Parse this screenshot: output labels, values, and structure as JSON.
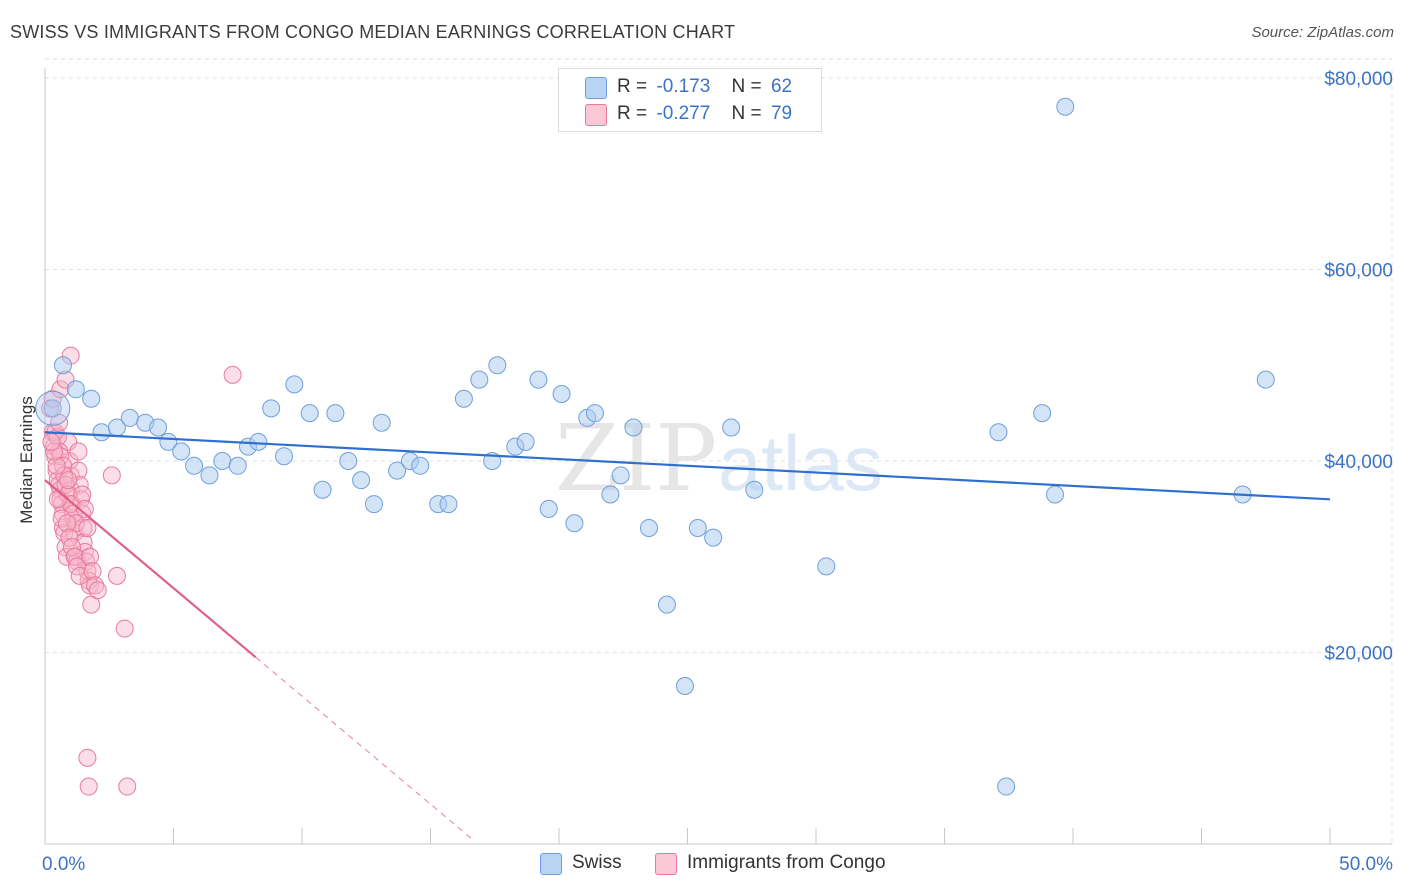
{
  "header": {
    "title": "SWISS VS IMMIGRANTS FROM CONGO MEDIAN EARNINGS CORRELATION CHART",
    "source": "Source: ZipAtlas.com"
  },
  "watermark": {
    "zip": "ZIP",
    "atlas": "atlas"
  },
  "legend": {
    "rows": [
      {
        "r_label": "R =",
        "r_value": "-0.173",
        "n_label": "N =",
        "n_value": "62"
      },
      {
        "r_label": "R =",
        "r_value": "-0.277",
        "n_label": "N =",
        "n_value": "79"
      }
    ]
  },
  "bottom_legend": {
    "swiss": "Swiss",
    "congo": "Immigrants from Congo"
  },
  "colors": {
    "swiss_fill": "#a9c9f0",
    "swiss_stroke": "#6f9fdc",
    "swiss_line": "#2f6fcf",
    "congo_fill": "#f6b6c9",
    "congo_stroke": "#e97a9e",
    "congo_line": "#e0608a",
    "axis_text": "#3b73c4",
    "grid": "#dde3ea"
  },
  "chart_data": {
    "type": "scatter",
    "title": "SWISS VS IMMIGRANTS FROM CONGO MEDIAN EARNINGS CORRELATION CHART",
    "ylabel": "Median Earnings",
    "xlabel": "",
    "xlim": [
      0,
      50
    ],
    "ylim": [
      0,
      82000
    ],
    "x_tick_labels": [
      "0.0%",
      "50.0%"
    ],
    "y_ticks": [
      20000,
      40000,
      60000,
      80000
    ],
    "y_tick_labels": [
      "$20,000",
      "$40,000",
      "$60,000",
      "$80,000"
    ],
    "grid": true,
    "legend_position": "top-center",
    "series": [
      {
        "name": "Swiss",
        "R": -0.173,
        "N": 62,
        "trend": {
          "x": [
            0,
            50
          ],
          "y": [
            43000,
            36000
          ]
        },
        "points": [
          [
            0.3,
            45500
          ],
          [
            0.7,
            50000
          ],
          [
            1.2,
            47500
          ],
          [
            1.8,
            46500
          ],
          [
            2.2,
            43000
          ],
          [
            2.8,
            43500
          ],
          [
            3.3,
            44500
          ],
          [
            3.9,
            44000
          ],
          [
            4.4,
            43500
          ],
          [
            4.8,
            42000
          ],
          [
            5.3,
            41000
          ],
          [
            5.8,
            39500
          ],
          [
            6.4,
            38500
          ],
          [
            6.9,
            40000
          ],
          [
            7.5,
            39500
          ],
          [
            7.9,
            41500
          ],
          [
            8.3,
            42000
          ],
          [
            8.8,
            45500
          ],
          [
            9.3,
            40500
          ],
          [
            9.7,
            48000
          ],
          [
            10.3,
            45000
          ],
          [
            10.8,
            37000
          ],
          [
            11.3,
            45000
          ],
          [
            11.8,
            40000
          ],
          [
            12.3,
            38000
          ],
          [
            12.8,
            35500
          ],
          [
            13.1,
            44000
          ],
          [
            13.7,
            39000
          ],
          [
            14.2,
            40000
          ],
          [
            14.6,
            39500
          ],
          [
            15.3,
            35500
          ],
          [
            15.7,
            35500
          ],
          [
            16.3,
            46500
          ],
          [
            16.9,
            48500
          ],
          [
            17.4,
            40000
          ],
          [
            17.6,
            50000
          ],
          [
            18.3,
            41500
          ],
          [
            18.7,
            42000
          ],
          [
            19.2,
            48500
          ],
          [
            19.6,
            35000
          ],
          [
            20.1,
            47000
          ],
          [
            20.6,
            33500
          ],
          [
            21.1,
            44500
          ],
          [
            21.4,
            45000
          ],
          [
            22.0,
            36500
          ],
          [
            22.4,
            38500
          ],
          [
            22.9,
            43500
          ],
          [
            23.5,
            33000
          ],
          [
            24.2,
            25000
          ],
          [
            24.9,
            16500
          ],
          [
            25.4,
            33000
          ],
          [
            26.0,
            32000
          ],
          [
            26.7,
            43500
          ],
          [
            27.6,
            37000
          ],
          [
            30.4,
            29000
          ],
          [
            37.1,
            43000
          ],
          [
            37.4,
            6000
          ],
          [
            38.8,
            45000
          ],
          [
            39.3,
            36500
          ],
          [
            39.7,
            77000
          ],
          [
            46.6,
            36500
          ],
          [
            47.5,
            48500
          ]
        ]
      },
      {
        "name": "Immigrants from Congo",
        "R": -0.277,
        "N": 79,
        "trend": {
          "x": [
            0,
            8.2
          ],
          "y": [
            38000,
            19500
          ],
          "x_dash_end": 16.6
        },
        "points": [
          [
            0.2,
            45500
          ],
          [
            0.3,
            43000
          ],
          [
            0.35,
            41500
          ],
          [
            0.4,
            40500
          ],
          [
            0.45,
            39000
          ],
          [
            0.5,
            38000
          ],
          [
            0.55,
            37500
          ],
          [
            0.6,
            37000
          ],
          [
            0.6,
            36000
          ],
          [
            0.65,
            35500
          ],
          [
            0.7,
            34500
          ],
          [
            0.7,
            33000
          ],
          [
            0.75,
            32500
          ],
          [
            0.8,
            31000
          ],
          [
            0.85,
            30000
          ],
          [
            0.9,
            42000
          ],
          [
            0.95,
            40000
          ],
          [
            1.0,
            38500
          ],
          [
            1.0,
            37000
          ],
          [
            1.05,
            35500
          ],
          [
            1.1,
            34000
          ],
          [
            1.15,
            32500
          ],
          [
            1.2,
            30000
          ],
          [
            1.25,
            29500
          ],
          [
            1.3,
            41000
          ],
          [
            1.3,
            39000
          ],
          [
            1.35,
            37500
          ],
          [
            1.4,
            36000
          ],
          [
            1.45,
            34500
          ],
          [
            1.5,
            33000
          ],
          [
            1.5,
            31500
          ],
          [
            1.55,
            30500
          ],
          [
            1.6,
            29500
          ],
          [
            1.65,
            28500
          ],
          [
            1.7,
            27500
          ],
          [
            1.75,
            27000
          ],
          [
            1.8,
            25000
          ],
          [
            0.4,
            43000
          ],
          [
            0.5,
            42500
          ],
          [
            0.55,
            41000
          ],
          [
            0.6,
            40500
          ],
          [
            0.7,
            39500
          ],
          [
            0.75,
            38500
          ],
          [
            0.8,
            37500
          ],
          [
            0.9,
            36500
          ],
          [
            1.0,
            35500
          ],
          [
            1.1,
            34500
          ],
          [
            1.2,
            33500
          ],
          [
            0.3,
            46500
          ],
          [
            0.6,
            47500
          ],
          [
            0.8,
            48500
          ],
          [
            1.0,
            51000
          ],
          [
            0.5,
            36000
          ],
          [
            0.65,
            34000
          ],
          [
            0.85,
            33500
          ],
          [
            0.95,
            32000
          ],
          [
            1.05,
            31000
          ],
          [
            1.15,
            30000
          ],
          [
            1.25,
            29000
          ],
          [
            1.35,
            28000
          ],
          [
            1.45,
            36500
          ],
          [
            1.55,
            35000
          ],
          [
            1.65,
            33000
          ],
          [
            1.75,
            30000
          ],
          [
            1.85,
            28500
          ],
          [
            1.95,
            27000
          ],
          [
            2.05,
            26500
          ],
          [
            2.6,
            38500
          ],
          [
            2.8,
            28000
          ],
          [
            3.1,
            22500
          ],
          [
            7.3,
            49000
          ],
          [
            1.7,
            6000
          ],
          [
            1.65,
            9000
          ],
          [
            3.2,
            6000
          ],
          [
            0.45,
            39500
          ],
          [
            0.35,
            41000
          ],
          [
            0.25,
            42000
          ],
          [
            0.55,
            44000
          ],
          [
            0.9,
            38000
          ]
        ]
      }
    ]
  }
}
